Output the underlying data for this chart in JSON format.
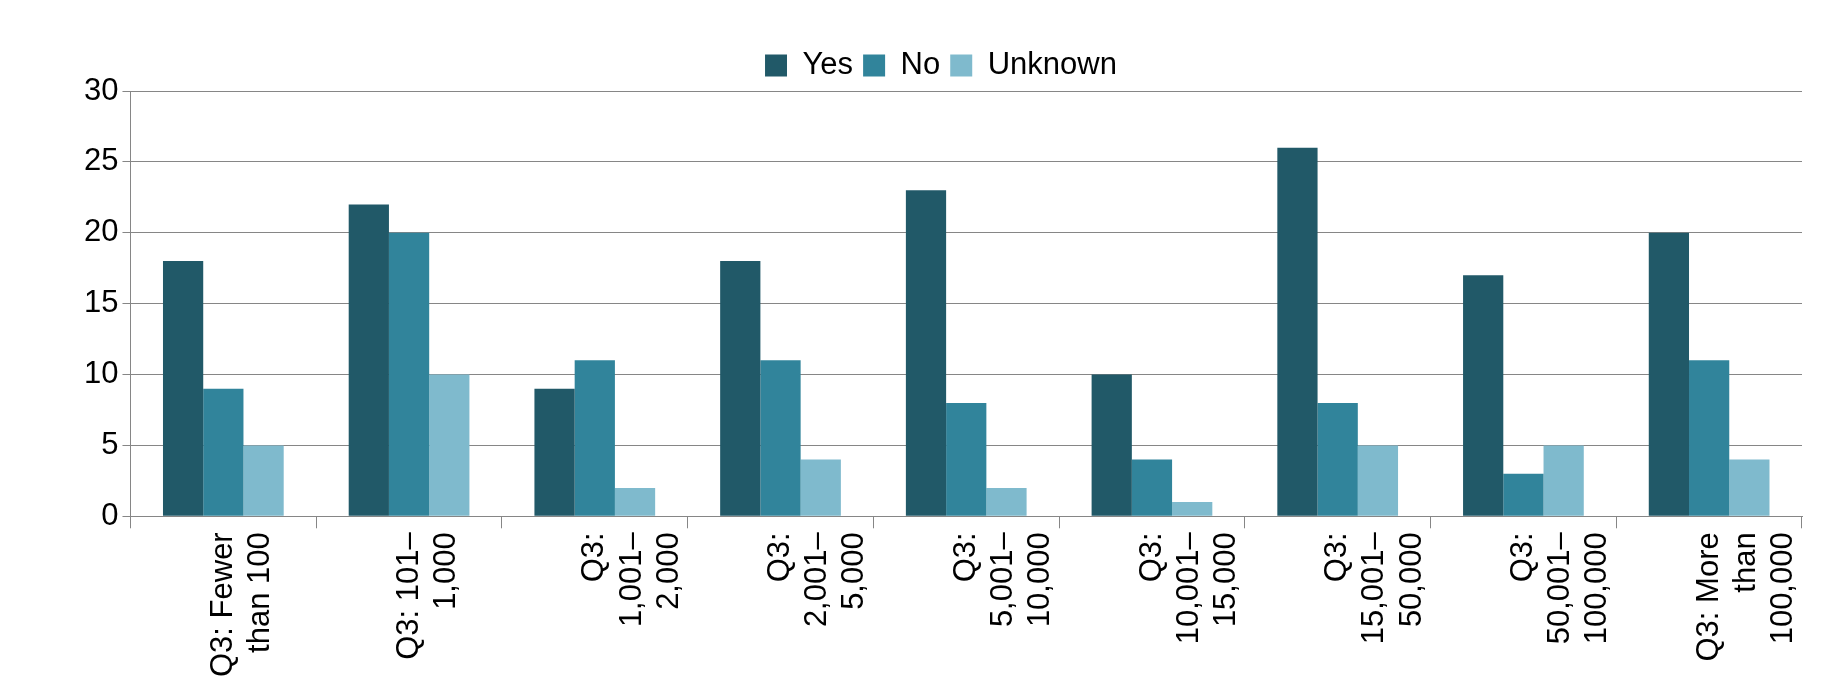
{
  "chart_data": {
    "type": "bar",
    "categories": [
      "Q3: Fewer than 100",
      "Q3: 101–1,000",
      "Q3: 1,001–2,000",
      "Q3: 2,001–5,000",
      "Q3: 5,001–10,000",
      "Q3: 10,001–15,000",
      "Q3: 15,001–50,000",
      "Q3: 50,001–100,000",
      "Q3: More than 100,000"
    ],
    "series": [
      {
        "name": "Yes",
        "color": "#215968",
        "values": [
          18,
          22,
          9,
          18,
          23,
          10,
          26,
          17,
          20
        ]
      },
      {
        "name": "No",
        "color": "#31849b",
        "values": [
          9,
          20,
          11,
          11,
          8,
          4,
          8,
          3,
          11
        ]
      },
      {
        "name": "Unknown",
        "color": "#7fbacd",
        "values": [
          5,
          10,
          2,
          4,
          2,
          1,
          5,
          5,
          4
        ]
      }
    ],
    "ylim": [
      0,
      30
    ],
    "yticks": [
      0,
      5,
      10,
      15,
      20,
      25,
      30
    ],
    "grid": "y",
    "legend": "top"
  }
}
